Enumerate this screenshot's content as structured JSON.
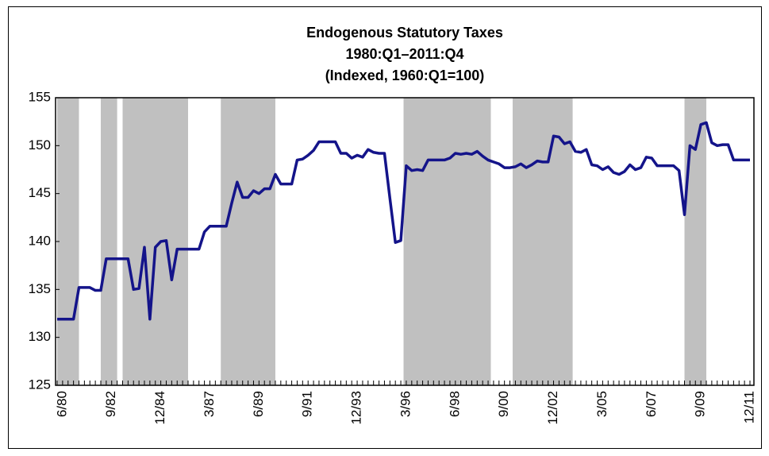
{
  "chart_data": {
    "type": "line",
    "title": [
      "Endogenous Statutory Taxes",
      "1980:Q1–2011:Q4",
      "(Indexed, 1960:Q1=100)"
    ],
    "categories": [
      null,
      "6/80",
      null,
      null,
      null,
      null,
      null,
      null,
      null,
      null,
      "9/82",
      null,
      null,
      null,
      null,
      null,
      null,
      null,
      null,
      "12/84",
      null,
      null,
      null,
      null,
      null,
      null,
      null,
      null,
      "3/87",
      null,
      null,
      null,
      null,
      null,
      null,
      null,
      null,
      "6/89",
      null,
      null,
      null,
      null,
      null,
      null,
      null,
      null,
      "9/91",
      null,
      null,
      null,
      null,
      null,
      null,
      null,
      null,
      "12/93",
      null,
      null,
      null,
      null,
      null,
      null,
      null,
      null,
      "3/96",
      null,
      null,
      null,
      null,
      null,
      null,
      null,
      null,
      "6/98",
      null,
      null,
      null,
      null,
      null,
      null,
      null,
      null,
      "9/00",
      null,
      null,
      null,
      null,
      null,
      null,
      null,
      null,
      "12/02",
      null,
      null,
      null,
      null,
      null,
      null,
      null,
      null,
      "3/05",
      null,
      null,
      null,
      null,
      null,
      null,
      null,
      null,
      "6/07",
      null,
      null,
      null,
      null,
      null,
      null,
      null,
      null,
      "9/09",
      null,
      null,
      null,
      null,
      null,
      null,
      null,
      null,
      "12/11"
    ],
    "values": [
      131.9,
      131.9,
      131.9,
      131.9,
      135.2,
      135.2,
      135.2,
      134.9,
      134.9,
      138.2,
      138.2,
      138.2,
      138.2,
      138.2,
      135.0,
      135.1,
      139.4,
      131.9,
      139.4,
      140.0,
      140.1,
      136.0,
      139.2,
      139.2,
      139.2,
      139.2,
      139.2,
      141.0,
      141.6,
      141.6,
      141.6,
      141.6,
      144.0,
      146.2,
      144.6,
      144.6,
      145.3,
      145.0,
      145.5,
      145.5,
      147.0,
      146.0,
      146.0,
      146.0,
      148.5,
      148.6,
      149.0,
      149.5,
      150.4,
      150.4,
      150.4,
      150.4,
      149.2,
      149.2,
      148.7,
      149.0,
      148.8,
      149.6,
      149.3,
      149.2,
      149.2,
      144.5,
      139.9,
      140.1,
      147.9,
      147.4,
      147.5,
      147.4,
      148.5,
      148.5,
      148.5,
      148.5,
      148.7,
      149.2,
      149.1,
      149.2,
      149.1,
      149.4,
      148.9,
      148.5,
      148.3,
      148.1,
      147.7,
      147.7,
      147.8,
      148.1,
      147.7,
      148.0,
      148.4,
      148.3,
      148.3,
      151.0,
      150.9,
      150.2,
      150.4,
      149.4,
      149.3,
      149.6,
      148.0,
      147.9,
      147.5,
      147.8,
      147.2,
      147.0,
      147.3,
      148.0,
      147.5,
      147.7,
      148.8,
      148.7,
      147.9,
      147.9,
      147.9,
      147.9,
      147.4,
      142.8,
      150.0,
      149.6,
      152.2,
      152.4,
      150.3,
      150.0,
      150.1,
      150.1,
      148.5,
      148.5,
      148.5,
      148.5
    ],
    "color": "#14148a",
    "shaded_periods": [
      [
        0,
        4
      ],
      [
        8,
        11
      ],
      [
        12,
        24
      ],
      [
        30,
        40
      ],
      [
        63.5,
        79.5
      ],
      [
        83.5,
        94.5
      ],
      [
        115,
        119
      ]
    ],
    "shade_color": "#c0c0c0",
    "ylim": [
      125,
      155
    ],
    "yticks": [
      125,
      130,
      135,
      140,
      145,
      150,
      155
    ],
    "grid": false
  }
}
